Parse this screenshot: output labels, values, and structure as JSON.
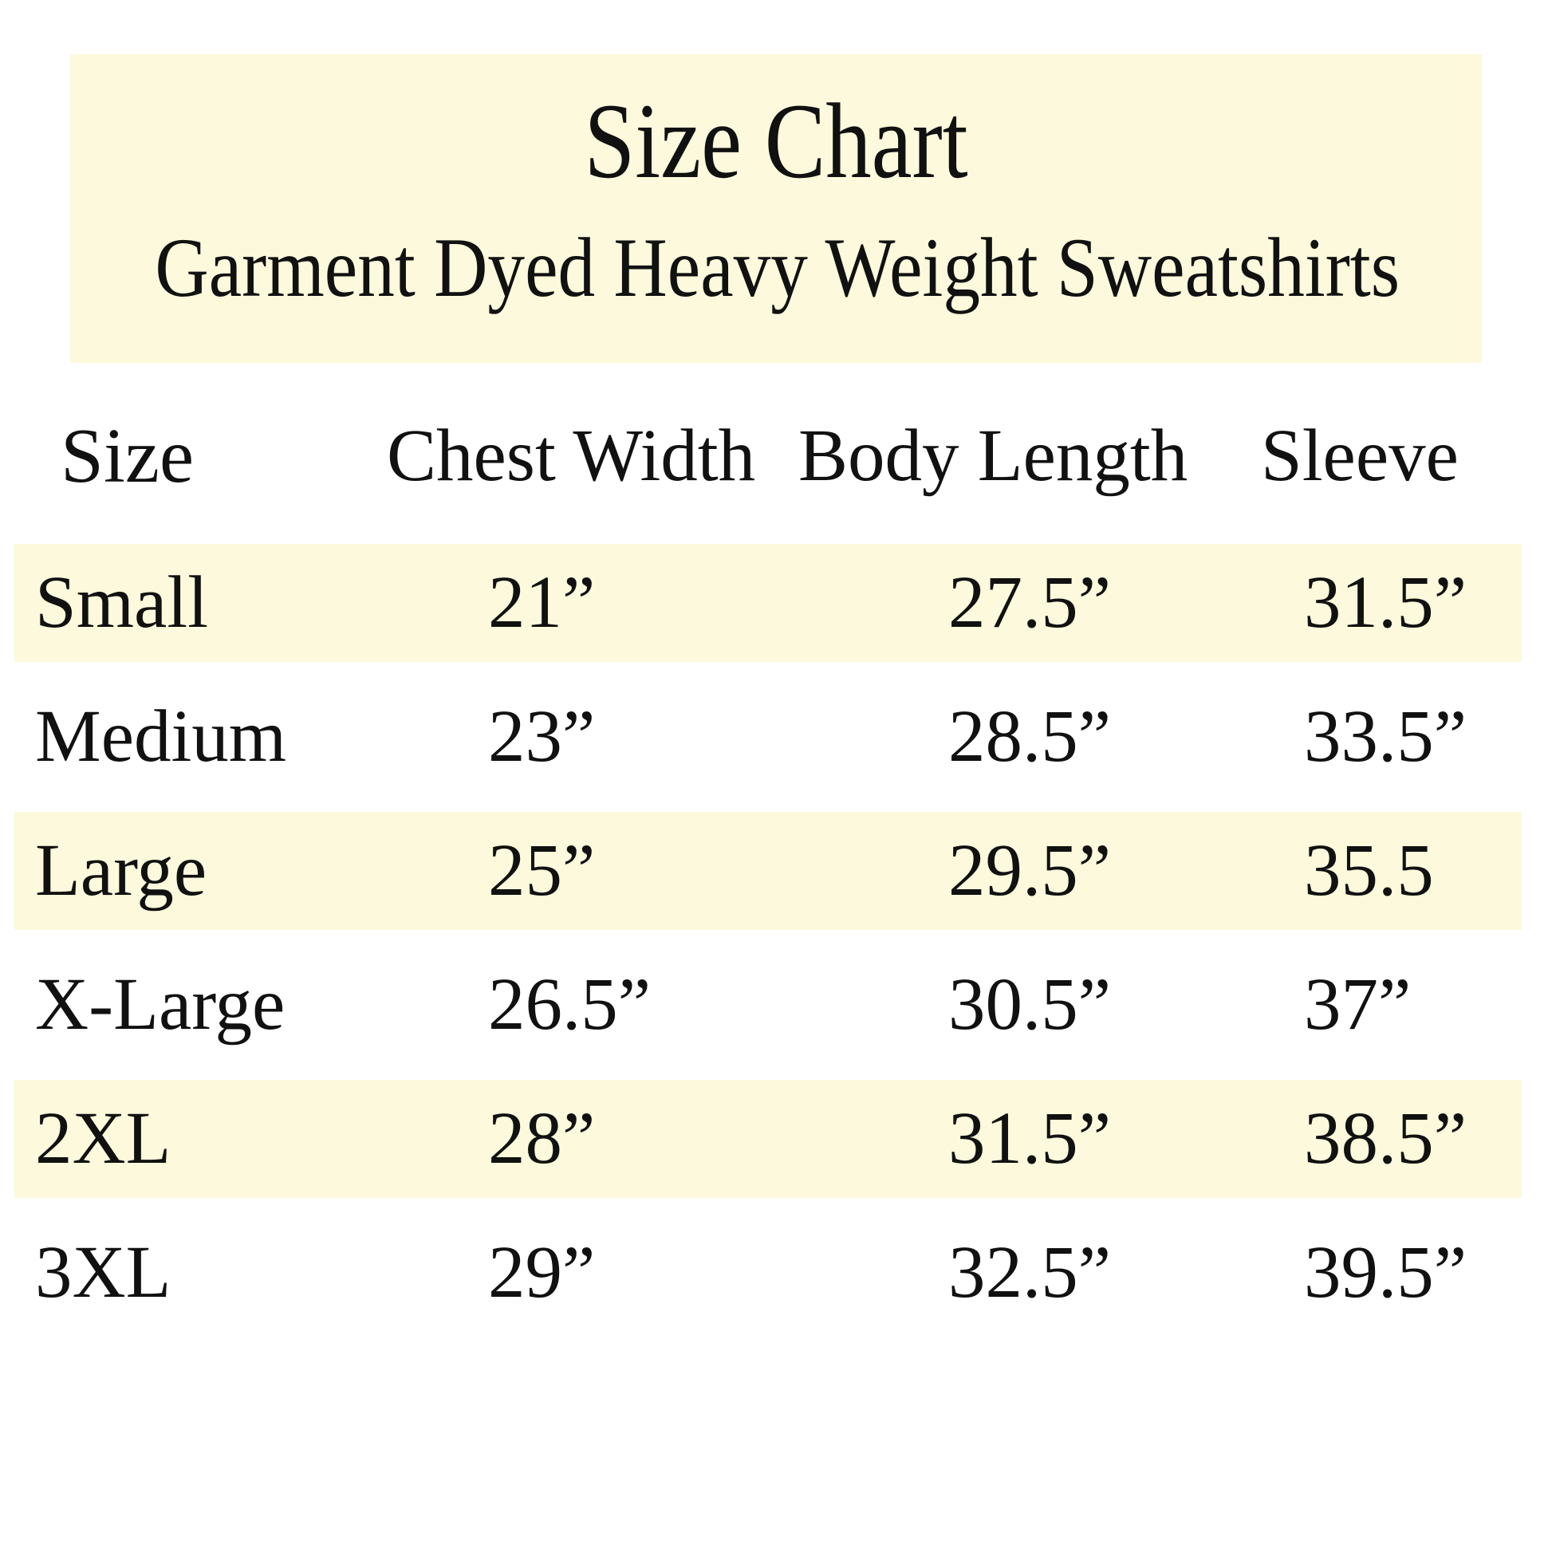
{
  "header": {
    "title": "Size Chart",
    "subtitle": "Garment Dyed Heavy Weight Sweatshirts"
  },
  "table": {
    "columns": [
      "Size",
      "Chest Width",
      "Body Length",
      "Sleeve"
    ],
    "rows": [
      {
        "size": "Small",
        "chest": "21”",
        "body": "27.5”",
        "sleeve": "31.5”",
        "striped": true
      },
      {
        "size": "Medium",
        "chest": "23”",
        "body": "28.5”",
        "sleeve": "33.5”",
        "striped": false
      },
      {
        "size": "Large",
        "chest": "25”",
        "body": "29.5”",
        "sleeve": "35.5",
        "striped": true
      },
      {
        "size": "X-Large",
        "chest": "26.5”",
        "body": "30.5”",
        "sleeve": "37”",
        "striped": false
      },
      {
        "size": "2XL",
        "chest": "28”",
        "body": "31.5”",
        "sleeve": "38.5”",
        "striped": true
      },
      {
        "size": "3XL",
        "chest": "29”",
        "body": "32.5”",
        "sleeve": "39.5”",
        "striped": false
      }
    ]
  },
  "colors": {
    "highlight": "#FCF9DC",
    "text": "#111111",
    "background": "#FFFFFF"
  }
}
